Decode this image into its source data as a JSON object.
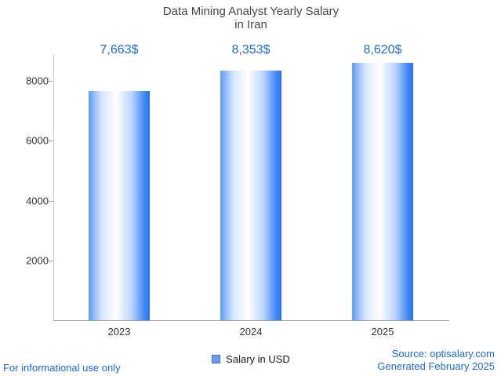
{
  "title": {
    "line1": "Data Mining Analyst Yearly Salary",
    "line2": "in Iran"
  },
  "chart_data": {
    "type": "bar",
    "title": "Data Mining Analyst Yearly Salary in Iran",
    "categories": [
      "2023",
      "2024",
      "2025"
    ],
    "values": [
      7663,
      8353,
      8620
    ],
    "value_labels": [
      "7,663$",
      "8,353$",
      "8,620$"
    ],
    "series_name": "Salary in USD",
    "xlabel": "",
    "ylabel": "",
    "ylim": [
      0,
      8870
    ],
    "yticks": [
      2000,
      4000,
      6000,
      8000
    ],
    "ytick_labels": [
      "2000",
      "4000",
      "6000",
      "8000"
    ],
    "grid": false,
    "legend_position": "bottom",
    "bar_gradient": [
      "#5e9cf8",
      "#d9e8ff",
      "#ffffff",
      "#bcd6fd",
      "#3d86f7",
      "#2a72ea"
    ]
  },
  "legend": {
    "label": "Salary in USD",
    "swatch_color": "#6e9bee"
  },
  "footer": {
    "left": "For informational use only",
    "source": "Source: optisalary.com",
    "generated": "Generated February 2025"
  },
  "colors": {
    "accent_blue": "#1a6bd8",
    "title_text": "#474747",
    "tick_text": "#333333",
    "axis_line": "#9b9b9b"
  }
}
